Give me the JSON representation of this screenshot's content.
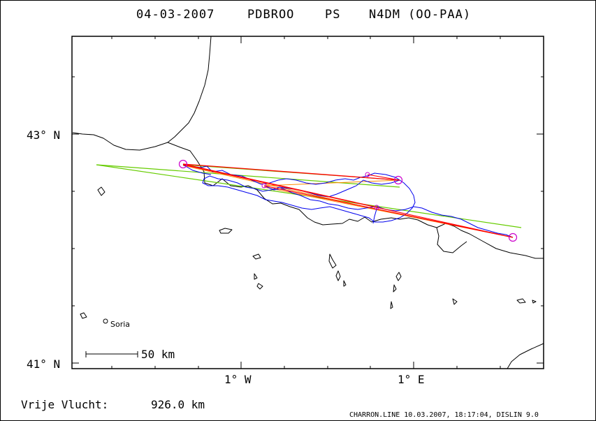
{
  "header": {
    "date": "04-03-2007",
    "pilot": "PDBROO",
    "category": "PS",
    "aircraft": "N4DM (OO-PAA)"
  },
  "axes": {
    "lat_labels": [
      "43° N",
      "41° N"
    ],
    "lon_labels": [
      "1° W",
      "1° E"
    ]
  },
  "map": {
    "place": "Soria",
    "scale_label": "50 km",
    "colors": {
      "track": "#0000ee",
      "task_line": "#ff0000",
      "free_flight": "#66cc00",
      "alt_line": "#ff8800",
      "turnpoint": "#cc00cc",
      "coast": "#000000"
    }
  },
  "footer": {
    "free_flight_label": "Vrije Vlucht:",
    "free_flight_value": "926.0 km",
    "software": "CHARRON.LINE 10.03.2007, 18:17:04, DISLIN 9.0"
  }
}
